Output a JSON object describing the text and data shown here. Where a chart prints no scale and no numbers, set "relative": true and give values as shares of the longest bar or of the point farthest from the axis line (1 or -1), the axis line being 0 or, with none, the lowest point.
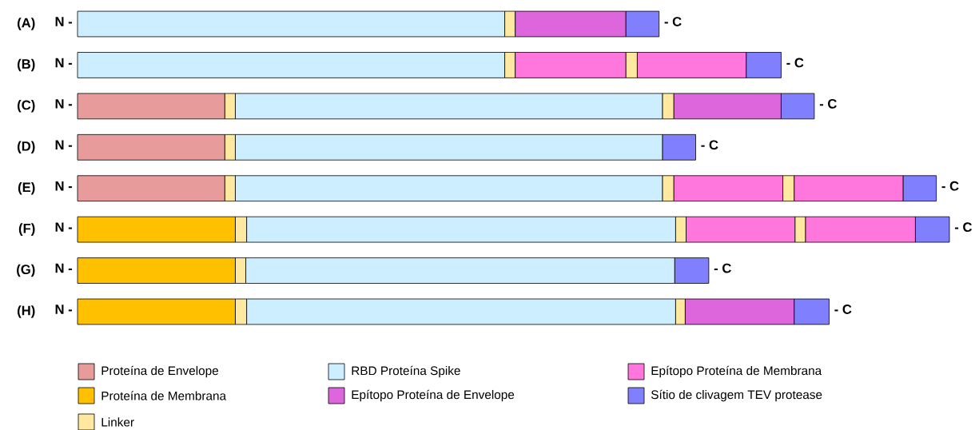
{
  "chart_data": {
    "type": "bar",
    "orientation": "horizontal",
    "relative": true,
    "stacked": true,
    "legend": "bottom",
    "categories": [
      "(A)",
      "(B)",
      "(C)",
      "(D)",
      "(E)",
      "(F)",
      "(G)",
      "(H)"
    ],
    "series": [
      {
        "name": "Proteína de Envelope",
        "color": "#e89b9b",
        "values": [
          null,
          null,
          0.169,
          0.169,
          0.169,
          null,
          null,
          null
        ]
      },
      {
        "name": "Proteína de Membrana",
        "color": "#ffc000",
        "values": [
          null,
          null,
          null,
          null,
          null,
          0.181,
          0.181,
          0.181
        ]
      },
      {
        "name": "Linker",
        "color": "#ffe8a0",
        "values": [
          null,
          null,
          0.012,
          0.012,
          0.012,
          0.013,
          0.012,
          0.013
        ]
      },
      {
        "name": "RBD Proteína Spike",
        "color": "#cceeff",
        "values": [
          0.49,
          0.49,
          0.49,
          0.49,
          0.49,
          0.492,
          0.492,
          0.492
        ]
      },
      {
        "color": "#ffe8a0",
        "values": [
          0.012,
          0.012,
          0.013,
          null,
          0.013,
          0.012,
          null,
          0.011
        ]
      },
      {
        "name": "Epítopo Proteína de Envelope",
        "color": "#dd66dd",
        "values": [
          0.127,
          null,
          0.123,
          null,
          null,
          null,
          null,
          0.125
        ]
      },
      {
        "name": "Epítopo Proteína de Membrana",
        "color": "#ff77dd",
        "values": [
          null,
          0.127,
          null,
          null,
          0.125,
          0.125,
          null,
          null
        ]
      },
      {
        "color": "#ffe8a0",
        "values": [
          null,
          0.013,
          null,
          null,
          0.013,
          0.012,
          null,
          null
        ]
      },
      {
        "color": "#ff77dd",
        "values": [
          null,
          0.125,
          null,
          null,
          0.125,
          0.126,
          null,
          null
        ]
      },
      {
        "name": "Sítio de clivagem TEV protease",
        "color": "#8080ff",
        "values": [
          0.038,
          0.04,
          0.038,
          0.038,
          0.038,
          0.039,
          0.039,
          0.04
        ]
      }
    ],
    "annotations": [
      "N -",
      "- C",
      "N -",
      "- C",
      "N -",
      "- C",
      "N -",
      "- C",
      "N -",
      "- C",
      "N -",
      "- C",
      "N -",
      "- C",
      "N -",
      "- C"
    ]
  }
}
